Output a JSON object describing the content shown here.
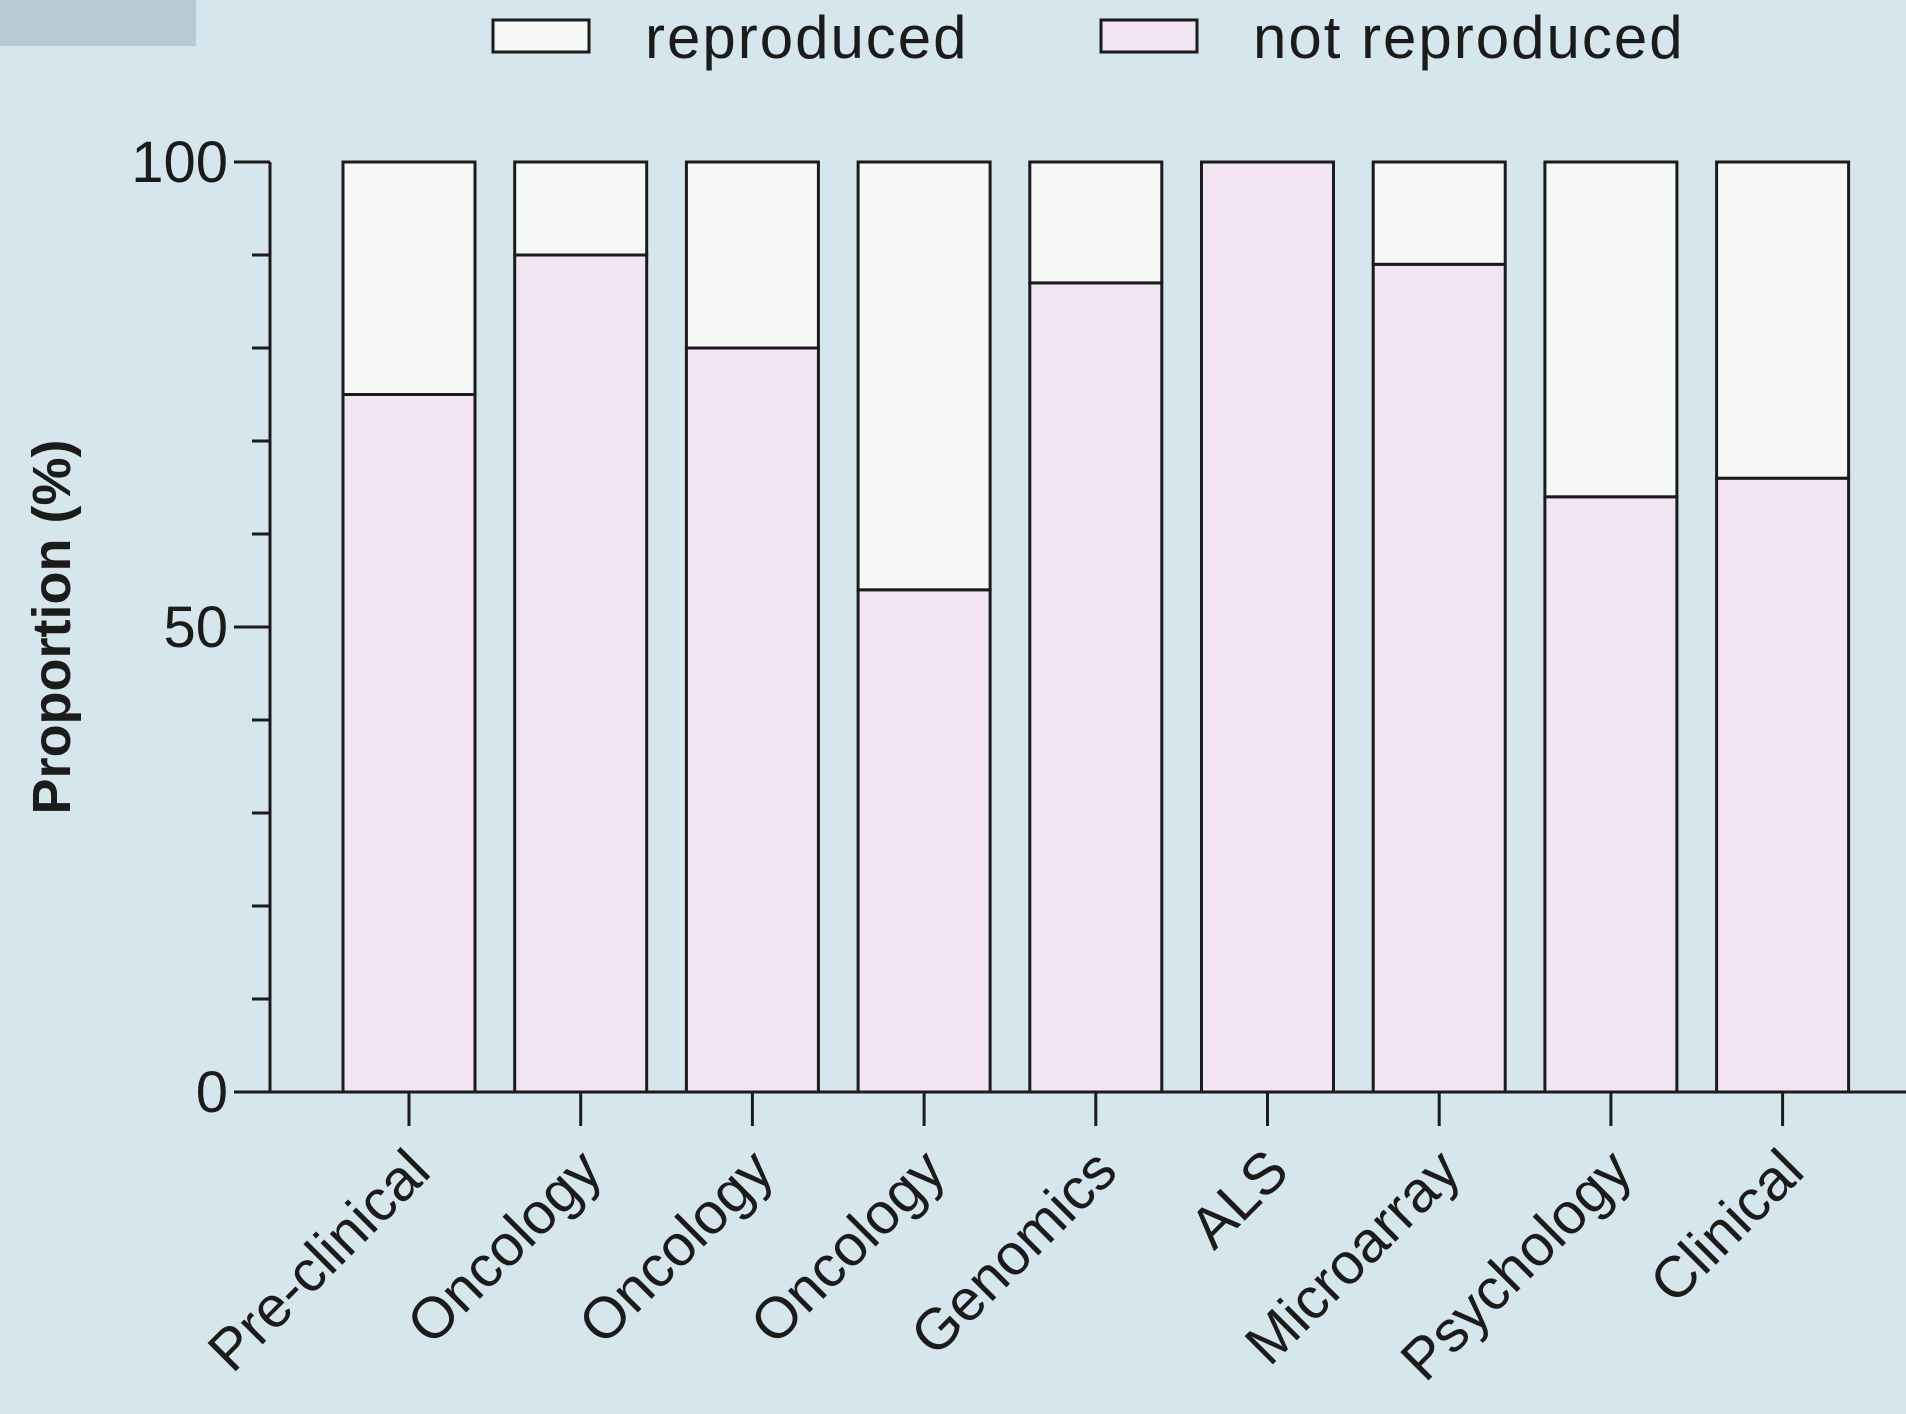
{
  "chart_data": {
    "type": "bar",
    "stacked": true,
    "categories": [
      "Pre-clinical",
      "Oncology",
      "Oncology",
      "Oncology",
      "Genomics",
      "ALS",
      "Microarray",
      "Psychology",
      "Clinical"
    ],
    "series": [
      {
        "name": "reproduced",
        "values": [
          25,
          10,
          20,
          46,
          13,
          0,
          11,
          36,
          34
        ],
        "color": "#f6f8f5"
      },
      {
        "name": "not reproduced",
        "values": [
          75,
          90,
          80,
          54,
          87,
          100,
          89,
          64,
          66
        ],
        "color": "#f2e4f2"
      }
    ],
    "ylabel": "Proportion (%)",
    "ylim": [
      0,
      100
    ],
    "yticks": [
      0,
      50,
      100
    ],
    "legend": "top",
    "grid": false
  }
}
